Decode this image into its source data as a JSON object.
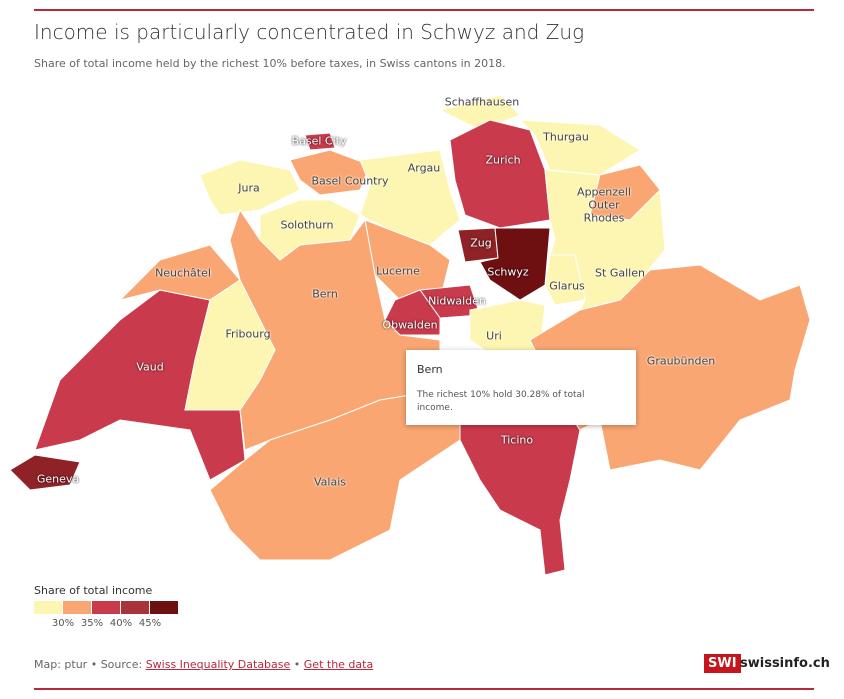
{
  "header": {
    "title": "Income is particularly concentrated in Schwyz and Zug",
    "subtitle": "Share of total income held by the richest 10% before taxes, in Swiss cantons in 2018."
  },
  "map": {
    "regions": [
      {
        "label": "Geneva",
        "color": "#8e2227"
      },
      {
        "label": "Vaud",
        "color": "#c93a4c"
      },
      {
        "label": "Neuchâtel",
        "color": "#f9a672"
      },
      {
        "label": "Jura",
        "color": "#fdf6b2"
      },
      {
        "label": "Basel City",
        "color": "#c93a4c"
      },
      {
        "label": "Basel Country",
        "color": "#f9a672"
      },
      {
        "label": "Solothurn",
        "color": "#fdf6b2"
      },
      {
        "label": "Argau",
        "color": "#fdf6b2"
      },
      {
        "label": "Schaffhausen",
        "color": "#fdf6b2"
      },
      {
        "label": "Zurich",
        "color": "#c93a4c"
      },
      {
        "label": "Thurgau",
        "color": "#fdf6b2"
      },
      {
        "label": "St Gallen",
        "color": "#fdf6b2"
      },
      {
        "label": "Appenzell Outer Rhodes",
        "color": "#f9a672"
      },
      {
        "label": "Glarus",
        "color": "#fdf6b2"
      },
      {
        "label": "Lucerne",
        "color": "#f9a672"
      },
      {
        "label": "Zug",
        "color": "#8e2227"
      },
      {
        "label": "Schwyz",
        "color": "#6e0f12"
      },
      {
        "label": "Nidwalden",
        "color": "#c93a4c"
      },
      {
        "label": "Obwalden",
        "color": "#c93a4c"
      },
      {
        "label": "Uri",
        "color": "#fdf6b2"
      },
      {
        "label": "Bern",
        "color": "#f9a672"
      },
      {
        "label": "Fribourg",
        "color": "#fdf6b2"
      },
      {
        "label": "Valais",
        "color": "#f9a672"
      },
      {
        "label": "Ticino",
        "color": "#c93a4c"
      },
      {
        "label": "Graubünden",
        "color": "#f9a672"
      }
    ]
  },
  "tooltip": {
    "title": "Bern",
    "text": "The richest 10% hold 30.28% of total income."
  },
  "legend": {
    "title": "Share of total income",
    "colors": [
      "#fdf6b2",
      "#f9a672",
      "#c93a4c",
      "#a8333a",
      "#6e0f12"
    ],
    "ticks": [
      "30%",
      "35%",
      "40%",
      "45%"
    ]
  },
  "footer": {
    "credit": "Map: ptur • Source:",
    "source_link": "Swiss Inequality Database",
    "separator": "•",
    "data_link": "Get the data"
  },
  "brand": {
    "badge": "SWI",
    "name": "swissinfo.ch"
  }
}
